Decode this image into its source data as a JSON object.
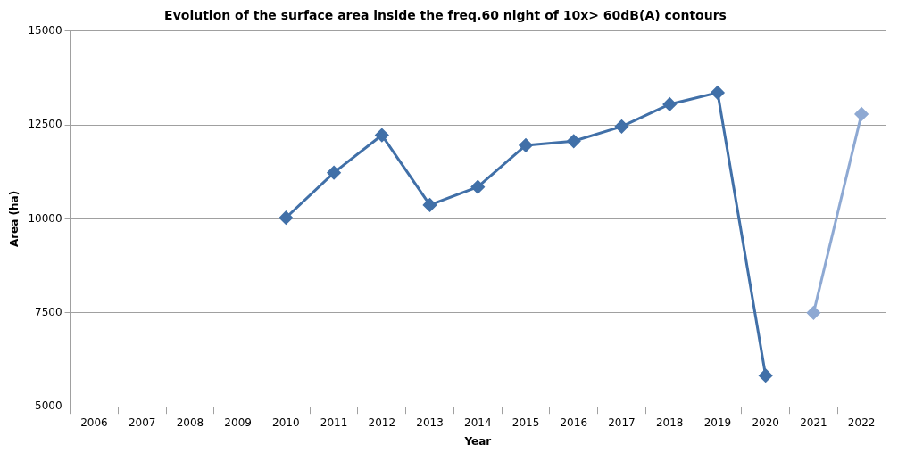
{
  "chart_data": {
    "type": "line",
    "title": "Evolution of the surface area inside the freq.60 night of 10x> 60dB(A) contours",
    "xlabel": "Year",
    "ylabel": "Area (ha)",
    "categories": [
      "2006",
      "2007",
      "2008",
      "2009",
      "2010",
      "2011",
      "2012",
      "2013",
      "2014",
      "2015",
      "2016",
      "2017",
      "2018",
      "2019",
      "2020",
      "2021",
      "2022"
    ],
    "series": [
      {
        "color": "#4170a8",
        "values": [
          null,
          null,
          null,
          null,
          10030,
          11230,
          12230,
          10370,
          10850,
          11960,
          12070,
          12460,
          13050,
          13360,
          5830,
          null,
          null
        ]
      },
      {
        "color": "#8ea9d3",
        "values": [
          null,
          null,
          null,
          null,
          null,
          null,
          null,
          null,
          null,
          null,
          null,
          null,
          null,
          null,
          null,
          7500,
          12790
        ]
      }
    ],
    "ylim": [
      5000,
      15000
    ],
    "yticks": [
      5000,
      7500,
      10000,
      12500,
      15000
    ],
    "grid": "y",
    "marker": "diamond",
    "line_style": "solid"
  }
}
